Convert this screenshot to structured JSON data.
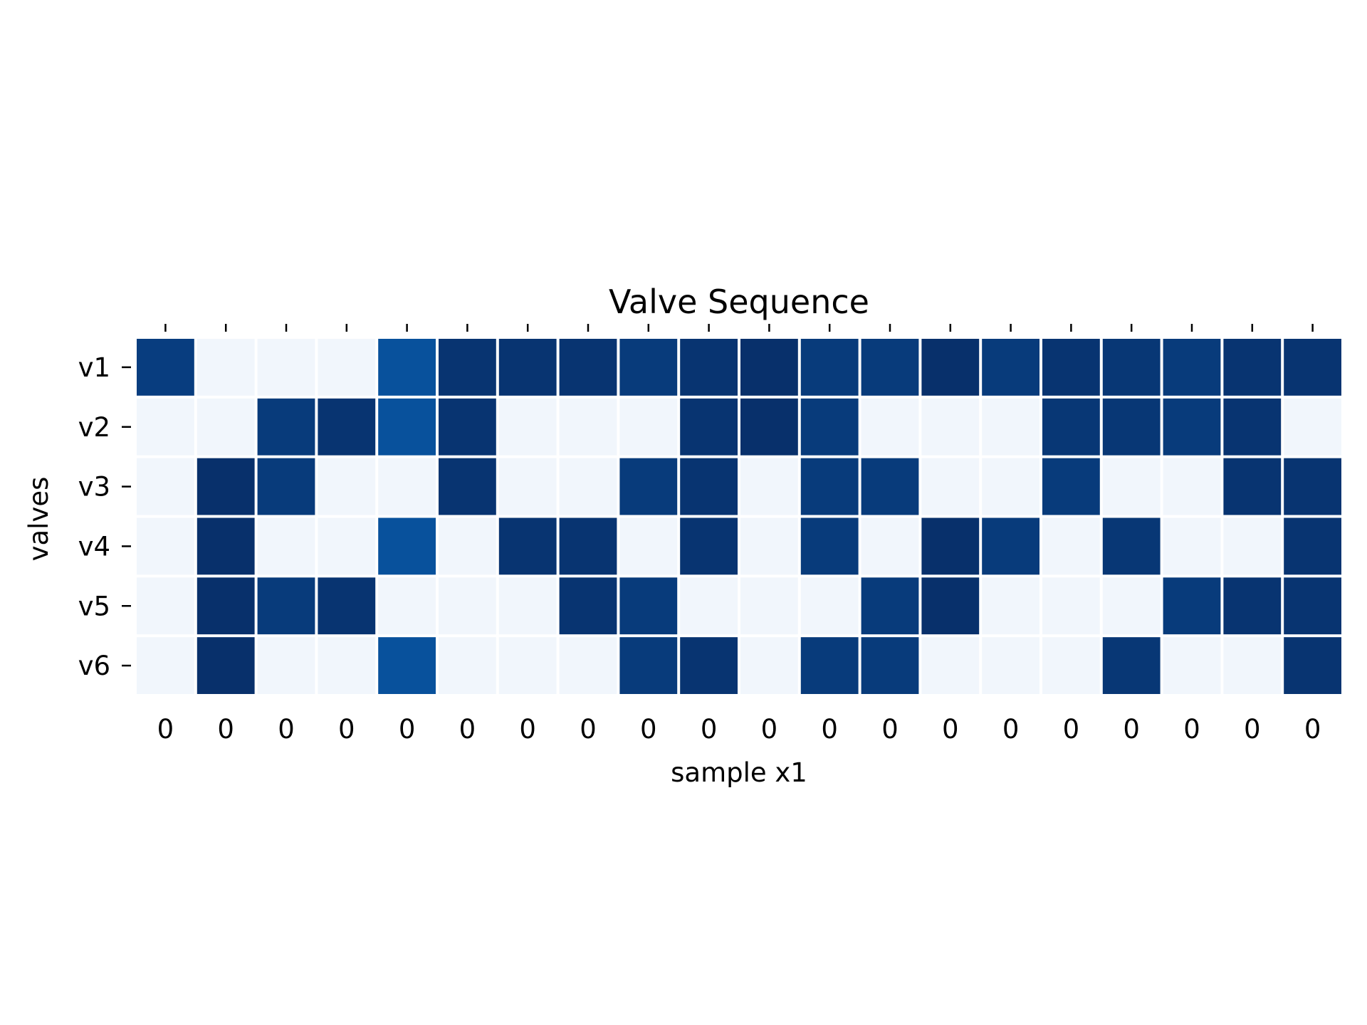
{
  "chart_data": {
    "type": "heatmap",
    "title": "Valve Sequence",
    "xlabel": "sample x1",
    "ylabel": "valves",
    "x_tick_labels": [
      "0",
      "0",
      "0",
      "0",
      "0",
      "0",
      "0",
      "0",
      "0",
      "0",
      "0",
      "0",
      "0",
      "0",
      "0",
      "0",
      "0",
      "0",
      "0",
      "0"
    ],
    "y_tick_labels": [
      "v1",
      "v2",
      "v3",
      "v4",
      "v5",
      "v6"
    ],
    "colormap": "Blues",
    "grid": false,
    "legend": "none",
    "values": [
      [
        0.9,
        0.02,
        0.02,
        0.02,
        0.75,
        0.97,
        0.97,
        0.97,
        0.92,
        0.97,
        1.0,
        0.92,
        0.92,
        1.0,
        0.92,
        0.97,
        0.95,
        0.92,
        0.97,
        0.97
      ],
      [
        0.02,
        0.02,
        0.92,
        0.97,
        0.75,
        0.97,
        0.02,
        0.02,
        0.02,
        0.97,
        1.0,
        0.92,
        0.02,
        0.02,
        0.02,
        0.95,
        0.95,
        0.92,
        0.97,
        0.02
      ],
      [
        0.02,
        1.0,
        0.92,
        0.02,
        0.02,
        0.97,
        0.02,
        0.02,
        0.92,
        0.97,
        0.02,
        0.92,
        0.92,
        0.02,
        0.02,
        0.92,
        0.02,
        0.02,
        0.97,
        0.97
      ],
      [
        0.02,
        1.0,
        0.02,
        0.02,
        0.75,
        0.02,
        0.97,
        0.97,
        0.02,
        0.97,
        0.02,
        0.92,
        0.02,
        1.0,
        0.92,
        0.02,
        0.95,
        0.02,
        0.02,
        0.97
      ],
      [
        0.02,
        1.0,
        0.92,
        0.97,
        0.02,
        0.02,
        0.02,
        0.97,
        0.92,
        0.02,
        0.02,
        0.02,
        0.92,
        1.0,
        0.02,
        0.02,
        0.02,
        0.92,
        0.97,
        0.97
      ],
      [
        0.02,
        1.0,
        0.02,
        0.02,
        0.75,
        0.02,
        0.02,
        0.02,
        0.92,
        0.97,
        0.02,
        0.92,
        0.92,
        0.02,
        0.02,
        0.02,
        0.95,
        0.02,
        0.02,
        0.97
      ]
    ],
    "colors": {
      "low": "#f7fbff",
      "mid": "#08519c",
      "high": "#08306b"
    }
  }
}
